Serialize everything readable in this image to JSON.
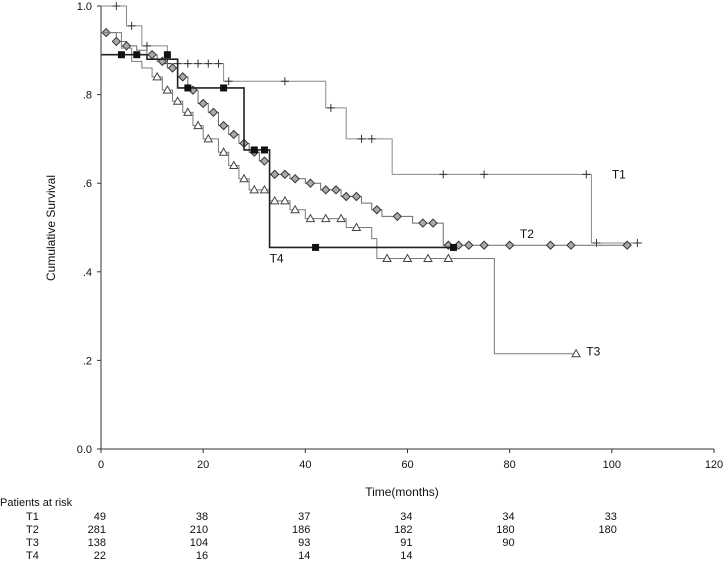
{
  "chart_data": {
    "type": "line",
    "title": "",
    "xlabel": "Time(months)",
    "ylabel": "Cumulative Survival",
    "xlim": [
      0,
      120
    ],
    "ylim": [
      0,
      1
    ],
    "x_ticks": [
      "0",
      "20",
      "40",
      "60",
      "80",
      "100",
      "120"
    ],
    "y_ticks": [
      "0.0",
      ".2",
      ".4",
      ".6",
      ".8",
      "1.0"
    ],
    "grid": false,
    "series": [
      {
        "name": "T1",
        "marker": "plus",
        "color": "#8a8a8a",
        "steps": [
          [
            0,
            1.0
          ],
          [
            5,
            0.955
          ],
          [
            8,
            0.91
          ],
          [
            13,
            0.87
          ],
          [
            24,
            0.83
          ],
          [
            44,
            0.77
          ],
          [
            48,
            0.7
          ],
          [
            57,
            0.62
          ],
          [
            96,
            0.465
          ],
          [
            106,
            0.465
          ]
        ],
        "censored": [
          [
            3,
            1.0
          ],
          [
            6,
            0.955
          ],
          [
            9,
            0.91
          ],
          [
            13,
            0.87
          ],
          [
            15,
            0.87
          ],
          [
            17,
            0.87
          ],
          [
            19,
            0.87
          ],
          [
            21,
            0.87
          ],
          [
            23,
            0.87
          ],
          [
            25,
            0.83
          ],
          [
            36,
            0.83
          ],
          [
            45,
            0.77
          ],
          [
            51,
            0.7
          ],
          [
            53,
            0.7
          ],
          [
            67,
            0.62
          ],
          [
            75,
            0.62
          ],
          [
            95,
            0.62
          ],
          [
            97,
            0.465
          ],
          [
            105,
            0.465
          ]
        ]
      },
      {
        "name": "T2",
        "marker": "diamond",
        "color": "#6a6a6a",
        "steps": [
          [
            0,
            0.94
          ],
          [
            3,
            0.92
          ],
          [
            5,
            0.91
          ],
          [
            7,
            0.9
          ],
          [
            9,
            0.89
          ],
          [
            11,
            0.875
          ],
          [
            13,
            0.86
          ],
          [
            15,
            0.84
          ],
          [
            17,
            0.81
          ],
          [
            19,
            0.78
          ],
          [
            21,
            0.76
          ],
          [
            23,
            0.73
          ],
          [
            25,
            0.71
          ],
          [
            27,
            0.69
          ],
          [
            29,
            0.67
          ],
          [
            31,
            0.65
          ],
          [
            33,
            0.62
          ],
          [
            37,
            0.61
          ],
          [
            40,
            0.6
          ],
          [
            43,
            0.585
          ],
          [
            47,
            0.57
          ],
          [
            51,
            0.555
          ],
          [
            53,
            0.54
          ],
          [
            55,
            0.525
          ],
          [
            61,
            0.51
          ],
          [
            67,
            0.46
          ],
          [
            80,
            0.46
          ],
          [
            103,
            0.46
          ]
        ],
        "censored": [
          [
            1,
            0.94
          ],
          [
            3,
            0.92
          ],
          [
            5,
            0.91
          ],
          [
            10,
            0.89
          ],
          [
            12,
            0.875
          ],
          [
            14,
            0.86
          ],
          [
            16,
            0.84
          ],
          [
            18,
            0.81
          ],
          [
            20,
            0.78
          ],
          [
            22,
            0.76
          ],
          [
            24,
            0.73
          ],
          [
            26,
            0.71
          ],
          [
            28,
            0.69
          ],
          [
            30,
            0.67
          ],
          [
            32,
            0.65
          ],
          [
            34,
            0.62
          ],
          [
            36,
            0.62
          ],
          [
            38,
            0.61
          ],
          [
            41,
            0.6
          ],
          [
            44,
            0.585
          ],
          [
            46,
            0.585
          ],
          [
            48,
            0.57
          ],
          [
            50,
            0.57
          ],
          [
            54,
            0.54
          ],
          [
            58,
            0.525
          ],
          [
            63,
            0.51
          ],
          [
            65,
            0.51
          ],
          [
            68,
            0.46
          ],
          [
            70,
            0.46
          ],
          [
            72,
            0.46
          ],
          [
            75,
            0.46
          ],
          [
            80,
            0.46
          ],
          [
            88,
            0.46
          ],
          [
            92,
            0.46
          ],
          [
            103,
            0.46
          ]
        ]
      },
      {
        "name": "T3",
        "marker": "triangle",
        "color": "#7a7a7a",
        "steps": [
          [
            0,
            0.94
          ],
          [
            4,
            0.905
          ],
          [
            6,
            0.875
          ],
          [
            8,
            0.86
          ],
          [
            10,
            0.84
          ],
          [
            12,
            0.81
          ],
          [
            14,
            0.785
          ],
          [
            16,
            0.76
          ],
          [
            18,
            0.73
          ],
          [
            20,
            0.7
          ],
          [
            23,
            0.67
          ],
          [
            25,
            0.64
          ],
          [
            27,
            0.61
          ],
          [
            29,
            0.585
          ],
          [
            33,
            0.56
          ],
          [
            37,
            0.54
          ],
          [
            40,
            0.52
          ],
          [
            48,
            0.5
          ],
          [
            53,
            0.475
          ],
          [
            54,
            0.43
          ],
          [
            77,
            0.215
          ],
          [
            93,
            0.215
          ]
        ],
        "censored": [
          [
            11,
            0.84
          ],
          [
            13,
            0.81
          ],
          [
            15,
            0.785
          ],
          [
            17,
            0.76
          ],
          [
            19,
            0.73
          ],
          [
            21,
            0.7
          ],
          [
            24,
            0.67
          ],
          [
            26,
            0.64
          ],
          [
            28,
            0.61
          ],
          [
            30,
            0.585
          ],
          [
            32,
            0.585
          ],
          [
            34,
            0.56
          ],
          [
            36,
            0.56
          ],
          [
            38,
            0.54
          ],
          [
            41,
            0.52
          ],
          [
            44,
            0.52
          ],
          [
            47,
            0.52
          ],
          [
            50,
            0.5
          ],
          [
            56,
            0.43
          ],
          [
            60,
            0.43
          ],
          [
            64,
            0.43
          ],
          [
            68,
            0.43
          ],
          [
            93,
            0.215
          ]
        ]
      },
      {
        "name": "T4",
        "marker": "square",
        "color": "#222222",
        "steps": [
          [
            0,
            0.89
          ],
          [
            5,
            0.89
          ],
          [
            9,
            0.88
          ],
          [
            15,
            0.815
          ],
          [
            24,
            0.815
          ],
          [
            28,
            0.675
          ],
          [
            33,
            0.455
          ],
          [
            42,
            0.455
          ],
          [
            69,
            0.455
          ]
        ],
        "censored": [
          [
            4,
            0.89
          ],
          [
            7,
            0.89
          ],
          [
            13,
            0.89
          ],
          [
            17,
            0.815
          ],
          [
            24,
            0.815
          ],
          [
            30,
            0.675
          ],
          [
            32,
            0.675
          ],
          [
            42,
            0.455
          ],
          [
            69,
            0.455
          ]
        ]
      }
    ],
    "annotations": [
      {
        "text": "T1",
        "x": 100,
        "y": 0.62
      },
      {
        "text": "T2",
        "x": 82,
        "y": 0.485
      },
      {
        "text": "T3",
        "x": 95,
        "y": 0.22
      },
      {
        "text": "T4",
        "x": 33,
        "y": 0.43
      }
    ],
    "patients_at_risk": {
      "title": "Patients at risk",
      "columns_x": [
        0,
        20,
        40,
        60,
        80,
        100
      ],
      "rows": [
        {
          "label": "T1",
          "values": [
            "49",
            "38",
            "37",
            "34",
            "34",
            "33"
          ]
        },
        {
          "label": "T2",
          "values": [
            "281",
            "210",
            "186",
            "182",
            "180",
            "180"
          ]
        },
        {
          "label": "T3",
          "values": [
            "138",
            "104",
            "93",
            "91",
            "90",
            ""
          ]
        },
        {
          "label": "T4",
          "values": [
            "22",
            "16",
            "14",
            "14",
            "",
            ""
          ]
        }
      ]
    }
  }
}
